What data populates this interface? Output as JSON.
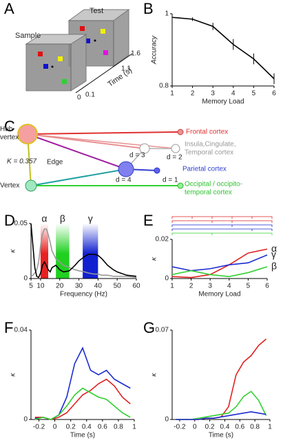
{
  "panel_labels": [
    "A",
    "B",
    "C",
    "D",
    "E",
    "F",
    "G"
  ],
  "diagram_a": {
    "test": "Test",
    "sample": "Sample",
    "time_label": "Time (s)",
    "time_ticks": [
      "0",
      "0.1",
      "1.1",
      "1.6"
    ]
  },
  "diagram_c": {
    "hub_lines": [
      "Hub",
      "vertex"
    ],
    "edge": "Edge",
    "vertex": "Vertex",
    "k": "K = 0.357",
    "d_labels": [
      "d = 3",
      "d = 2",
      "d = 4",
      "d = 1"
    ],
    "frontal": "Frontal cortex",
    "insula_lines": [
      "Insula,Cingulate,",
      "Temporal cortex"
    ],
    "parietal": "Parietal cortex",
    "occipital_lines": [
      "Occipital / occipito-",
      "temporal cortex"
    ]
  },
  "chart_data": [
    {
      "type": "line",
      "xlabel": "Memory Load",
      "ylabel": "Accuracy",
      "x": [
        1,
        2,
        3,
        4,
        5,
        6
      ],
      "xlim": [
        1,
        6
      ],
      "xticks": [
        1,
        2,
        3,
        4,
        5,
        6
      ],
      "ylim": [
        0.8,
        1
      ],
      "yticks": [
        0.8,
        1
      ],
      "series": [
        {
          "name": "Accuracy",
          "color": "#000000",
          "values": [
            0.99,
            0.985,
            0.965,
            0.915,
            0.875,
            0.82
          ],
          "errors": [
            0.003,
            0.005,
            0.01,
            0.015,
            0.015,
            0.015
          ]
        }
      ]
    },
    {
      "type": "line",
      "xlabel": "Frequency (Hz)",
      "ylabel": "κ",
      "x": [
        5,
        6,
        7,
        8,
        9,
        10,
        11,
        12,
        13,
        14,
        15,
        16,
        18,
        20,
        22,
        25,
        28,
        30,
        33,
        35,
        38,
        40,
        42,
        45,
        48,
        50,
        55,
        60
      ],
      "xlim": [
        5,
        60
      ],
      "xticks": [
        5,
        10,
        20,
        30,
        40,
        50,
        60
      ],
      "ylim": [
        0,
        0.05
      ],
      "yticks": [
        0,
        0.05
      ],
      "bands": [
        {
          "label": "α",
          "from": 10,
          "to": 14,
          "color": "#e82020"
        },
        {
          "label": "β",
          "from": 18,
          "to": 25,
          "color": "#20d020"
        },
        {
          "label": "γ",
          "from": 32,
          "to": 40,
          "color": "#1020d0"
        }
      ],
      "series": [
        {
          "name": "gray",
          "color": "#999999",
          "values": [
            0.002,
            0.003,
            0.005,
            0.008,
            0.015,
            0.03,
            0.04,
            0.045,
            0.045,
            0.04,
            0.033,
            0.025,
            0.018,
            0.015,
            0.012,
            0.01,
            0.008,
            0.007,
            0.006,
            0.005,
            0.004,
            0.004,
            0.003,
            0.003,
            0.002,
            0.002,
            0.002,
            0.001
          ]
        },
        {
          "name": "black",
          "color": "#000000",
          "values": [
            0.05,
            0.03,
            0.01,
            0.002,
            0.001,
            0.005,
            0.012,
            0.015,
            0.012,
            0.008,
            0.006,
            0.01,
            0.012,
            0.008,
            0.006,
            0.007,
            0.012,
            0.016,
            0.02,
            0.022,
            0.022,
            0.021,
            0.018,
            0.012,
            0.008,
            0.006,
            0.003,
            0.002
          ]
        }
      ]
    },
    {
      "type": "line",
      "xlabel": "Memory Load",
      "ylabel": "κ",
      "named_ends": true,
      "x": [
        1,
        2,
        3,
        4,
        5,
        6
      ],
      "xlim": [
        1,
        6
      ],
      "xticks": [
        1,
        2,
        3,
        4,
        5,
        6
      ],
      "ylim": [
        0,
        0.02
      ],
      "yticks": [
        0,
        0.02
      ],
      "series": [
        {
          "name": "α",
          "color": "#e02020",
          "values": [
            0.001,
            0.0005,
            0.002,
            0.007,
            0.013,
            0.015
          ]
        },
        {
          "name": "γ",
          "color": "#1a2ad0",
          "values": [
            0.006,
            0.004,
            0.005,
            0.007,
            0.008,
            0.012
          ]
        },
        {
          "name": "β",
          "color": "#30d030",
          "values": [
            0.002,
            0.004,
            0.002,
            0.001,
            0.003,
            0.006
          ]
        }
      ]
    },
    {
      "type": "line",
      "xlabel": "Time (s)",
      "ylabel": "κ",
      "x": [
        -0.25,
        -0.15,
        -0.05,
        0.05,
        0.15,
        0.25,
        0.35,
        0.45,
        0.55,
        0.65,
        0.75,
        0.85,
        0.95
      ],
      "xlim": [
        -0.3,
        1
      ],
      "xticks": [
        -0.2,
        0,
        0.2,
        0.4,
        0.6,
        0.8,
        1
      ],
      "ylim": [
        0,
        0.04
      ],
      "yticks": [
        0,
        0.04
      ],
      "series": [
        {
          "name": "γ",
          "color": "#1a2ad0",
          "values": [
            0.0005,
            0.001,
            0,
            0.002,
            0.01,
            0.025,
            0.032,
            0.022,
            0.02,
            0.022,
            0.018,
            0.016,
            0.014
          ]
        },
        {
          "name": "α",
          "color": "#e02020",
          "values": [
            0.001,
            0.001,
            0,
            0.001,
            0.003,
            0.007,
            0.011,
            0.013,
            0.016,
            0.018,
            0.015,
            0.01,
            0.007
          ]
        },
        {
          "name": "β",
          "color": "#30d030",
          "values": [
            0,
            0.001,
            0,
            0.002,
            0.006,
            0.011,
            0.014,
            0.012,
            0.01,
            0.009,
            0.006,
            0.003,
            0.001
          ]
        }
      ]
    },
    {
      "type": "line",
      "xlabel": "Time (s)",
      "ylabel": "κ",
      "x": [
        -0.25,
        -0.15,
        -0.05,
        0.05,
        0.15,
        0.25,
        0.35,
        0.45,
        0.55,
        0.65,
        0.75,
        0.85,
        0.95
      ],
      "xlim": [
        -0.3,
        1
      ],
      "xticks": [
        -0.2,
        0,
        0.2,
        0.4,
        0.6,
        0.8,
        1
      ],
      "ylim": [
        0,
        0.07
      ],
      "yticks": [
        0,
        0.07
      ],
      "series": [
        {
          "name": "α",
          "color": "#e02020",
          "values": [
            0,
            0,
            0,
            0,
            0.001,
            0.001,
            0.002,
            0.01,
            0.035,
            0.045,
            0.05,
            0.058,
            0.063
          ]
        },
        {
          "name": "β",
          "color": "#30d030",
          "values": [
            0,
            0,
            0,
            0.001,
            0.002,
            0.003,
            0.004,
            0.005,
            0.01,
            0.018,
            0.022,
            0.015,
            0.003
          ]
        },
        {
          "name": "γ",
          "color": "#1a2ad0",
          "values": [
            0,
            0,
            0,
            0,
            0.001,
            0.001,
            0.002,
            0.003,
            0.004,
            0.005,
            0.006,
            0.005,
            0.004
          ]
        }
      ]
    }
  ]
}
